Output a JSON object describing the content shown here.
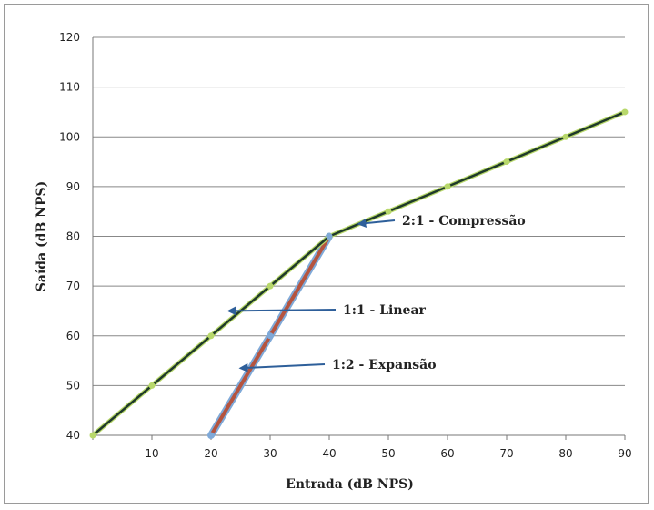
{
  "chart_data": {
    "type": "line",
    "xlabel": "Entrada (dB NPS)",
    "ylabel": "Saída (dB NPS)",
    "x_tick_labels": [
      "-",
      "10",
      "20",
      "30",
      "40",
      "50",
      "60",
      "70",
      "80",
      "90"
    ],
    "x_tick_values": [
      0,
      10,
      20,
      30,
      40,
      50,
      60,
      70,
      80,
      90
    ],
    "y_tick_labels": [
      "40",
      "50",
      "60",
      "70",
      "80",
      "90",
      "100",
      "110",
      "120"
    ],
    "y_tick_values": [
      40,
      50,
      60,
      70,
      80,
      90,
      100,
      110,
      120
    ],
    "xlim": [
      0,
      90
    ],
    "ylim": [
      40,
      120
    ],
    "grid": "horizontal",
    "legend": "none",
    "series": [
      {
        "x": [
          0,
          10,
          20,
          30,
          40,
          50,
          60,
          70,
          80,
          90
        ],
        "y": [
          40,
          50,
          60,
          70,
          80,
          85,
          90,
          95,
          100,
          105
        ],
        "color": "#1f3a2a",
        "marker_color": "#b8d86b"
      },
      {
        "x": [
          20,
          30,
          40
        ],
        "y": [
          40,
          60,
          80
        ],
        "color": "#b5543f",
        "outline_color": "#7fa9d8"
      }
    ],
    "annotations": [
      {
        "text": "2:1 - Compressão",
        "arrow_to": [
          45,
          82.5
        ]
      },
      {
        "text": "1:1 - Linear",
        "arrow_to": [
          23,
          65
        ]
      },
      {
        "text": "1:2 - Expansão",
        "arrow_to": [
          25,
          53.5
        ]
      }
    ],
    "colors": {
      "grid": "#888888",
      "arrow": "#2e5f9a",
      "frame": "#9a9a9a"
    }
  }
}
